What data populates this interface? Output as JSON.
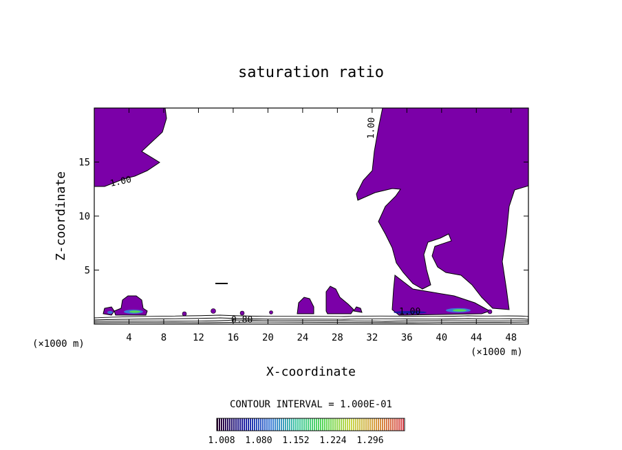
{
  "chart_data": {
    "type": "contour",
    "title": "saturation ratio",
    "xlabel": "X-coordinate",
    "ylabel": "Z-coordinate",
    "x_unit": "(×1000 m)",
    "z_unit": "(×1000 m)",
    "xlim": [
      0,
      50
    ],
    "ylim": [
      0,
      20
    ],
    "x_ticks": [
      4,
      8,
      12,
      16,
      20,
      24,
      28,
      32,
      36,
      40,
      44,
      48
    ],
    "y_ticks": [
      5,
      10,
      15
    ],
    "contour_interval_text": "CONTOUR INTERVAL = 1.000E-01",
    "contour_labels": [
      {
        "text": "1.00",
        "x": 3.2,
        "z": 12.9
      },
      {
        "text": "1.00",
        "x": 32.3,
        "z": 17.8
      },
      {
        "text": "0.80",
        "x": 17.3,
        "z": 0.6
      },
      {
        "text": "1.00",
        "x": 35.6,
        "z": 1.2
      }
    ],
    "colorbar": {
      "ticks": [
        "1.008",
        "1.080",
        "1.152",
        "1.224",
        "1.296"
      ],
      "colors": [
        "#2a0030",
        "#1a1aa0",
        "#3a7ad8",
        "#3ec8a0",
        "#55d855",
        "#c8d84a",
        "#d89a40",
        "#d8404a"
      ]
    },
    "fill_color": "#7b00a8",
    "supersaturated_regions": [
      {
        "name": "upper-left cloud",
        "x_range": [
          0,
          8.5
        ],
        "z_range": [
          12.7,
          20
        ]
      },
      {
        "name": "right cloud",
        "x_range": [
          30.5,
          50
        ],
        "z_range": [
          1.0,
          20
        ]
      },
      {
        "name": "low cloud 4-6 km",
        "x_range": [
          1.5,
          6
        ],
        "z_range": [
          0.9,
          2.7
        ]
      },
      {
        "name": "low cloud 24 km",
        "x_range": [
          23.5,
          25
        ],
        "z_range": [
          1.0,
          2.6
        ]
      },
      {
        "name": "low cloud 27-30 km",
        "x_range": [
          26.8,
          30.5
        ],
        "z_range": [
          1.0,
          3.5
        ]
      }
    ]
  }
}
